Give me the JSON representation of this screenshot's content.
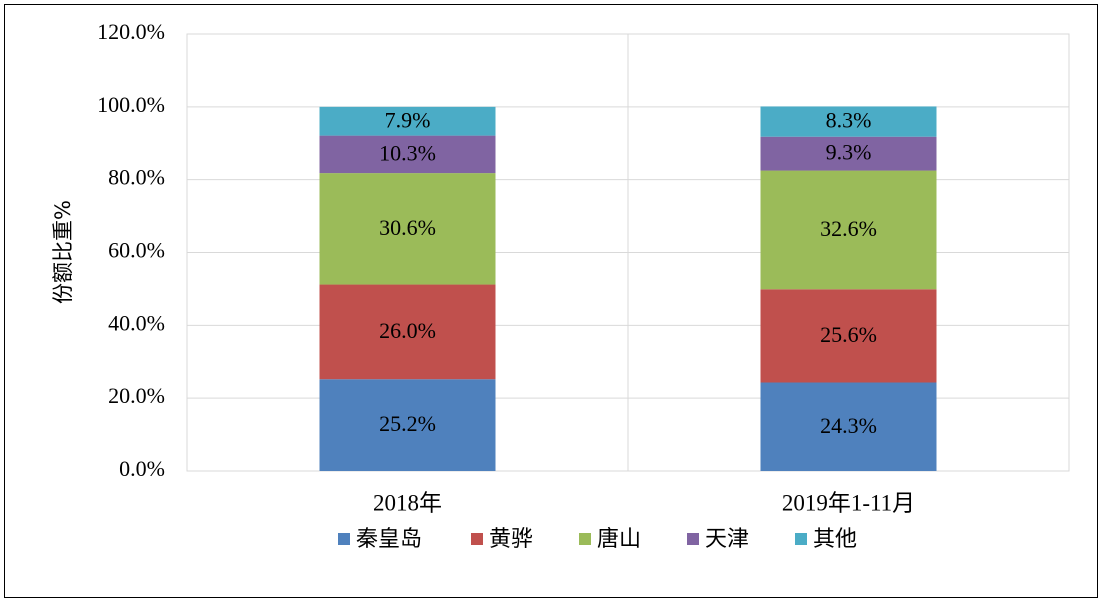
{
  "chart_data": {
    "type": "bar",
    "stacked": true,
    "title": "",
    "xlabel": "",
    "ylabel": "份额比重%",
    "categories": [
      "2018年",
      "2019年1-11月"
    ],
    "series": [
      {
        "name": "秦皇岛",
        "values": [
          25.2,
          24.3
        ],
        "labels": [
          "25.2%",
          "24.3%"
        ],
        "color": "#4f81bd"
      },
      {
        "name": "黄骅",
        "values": [
          26.0,
          25.6
        ],
        "labels": [
          "26.0%",
          "25.6%"
        ],
        "color": "#c0504d"
      },
      {
        "name": "唐山",
        "values": [
          30.6,
          32.6
        ],
        "labels": [
          "30.6%",
          "32.6%"
        ],
        "color": "#9bbb59"
      },
      {
        "name": "天津",
        "values": [
          10.3,
          9.3
        ],
        "labels": [
          "10.3%",
          "9.3%"
        ],
        "color": "#8064a2"
      },
      {
        "name": "其他",
        "values": [
          7.9,
          8.3
        ],
        "labels": [
          "7.9%",
          "8.3%"
        ],
        "color": "#4bacc6"
      }
    ],
    "ylim": [
      0,
      120
    ],
    "yticks": [
      0,
      20,
      40,
      60,
      80,
      100,
      120
    ],
    "ytick_labels": [
      "0.0%",
      "20.0%",
      "40.0%",
      "60.0%",
      "80.0%",
      "100.0%",
      "120.0%"
    ],
    "grid": true,
    "legend_position": "bottom"
  }
}
